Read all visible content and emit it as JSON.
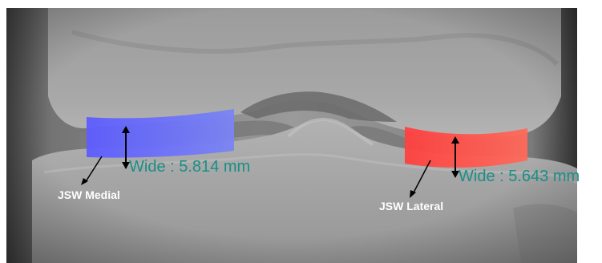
{
  "annotations": {
    "medial": {
      "label": "JSW Medial",
      "measurement": "Wide : 5.814 mm",
      "region_color": "#5a5cff"
    },
    "lateral": {
      "label": "JSW Lateral",
      "measurement": "Wide : 5.643 mm",
      "region_color": "#ff4a4a"
    }
  },
  "colors": {
    "measurement_text": "#1a8f86",
    "label_text": "#ffffff",
    "arrow": "#000000"
  }
}
